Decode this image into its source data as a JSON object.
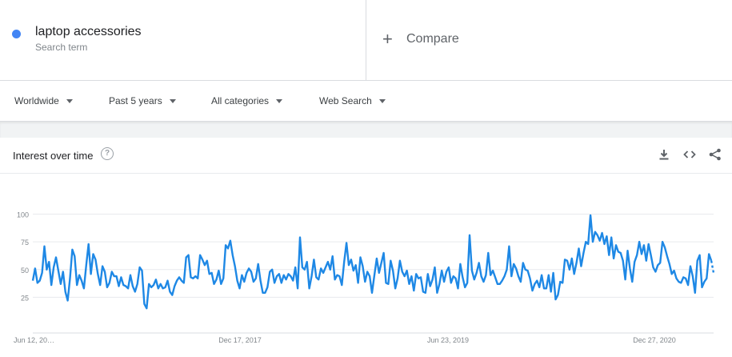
{
  "search_term": {
    "title": "laptop accessories",
    "subtitle": "Search term",
    "color": "#4285f4"
  },
  "compare": {
    "icon": "plus-icon",
    "label": "Compare"
  },
  "filters": [
    {
      "label": "Worldwide"
    },
    {
      "label": "Past 5 years"
    },
    {
      "label": "All categories"
    },
    {
      "label": "Web Search"
    }
  ],
  "card": {
    "title": "Interest over time",
    "icons": [
      "help-icon",
      "download-icon",
      "embed-icon",
      "share-icon"
    ]
  },
  "chart_data": {
    "type": "line",
    "series": [
      {
        "name": "laptop accessories",
        "color": "#1e88e5"
      }
    ],
    "y_ticks": [
      25,
      50,
      75,
      100
    ],
    "ylim": [
      0,
      100
    ],
    "x_labels": [
      "Jun 12, 20…",
      "Dec 17, 2017",
      "Jun 23, 2019",
      "Dec 27, 2020"
    ],
    "values": [
      40,
      51,
      38,
      40,
      47,
      71,
      50,
      57,
      36,
      52,
      61,
      49,
      37,
      48,
      30,
      22,
      42,
      68,
      62,
      36,
      45,
      40,
      33,
      54,
      73,
      46,
      64,
      59,
      46,
      36,
      53,
      48,
      34,
      38,
      48,
      44,
      44,
      35,
      43,
      36,
      35,
      33,
      45,
      35,
      30,
      37,
      52,
      49,
      19,
      15,
      37,
      34,
      36,
      41,
      33,
      37,
      33,
      34,
      40,
      30,
      27,
      35,
      40,
      43,
      40,
      38,
      61,
      63,
      43,
      42,
      44,
      42,
      63,
      59,
      54,
      58,
      46,
      47,
      37,
      41,
      49,
      37,
      42,
      72,
      69,
      76,
      63,
      53,
      40,
      33,
      45,
      39,
      47,
      51,
      48,
      39,
      42,
      55,
      40,
      29,
      29,
      34,
      48,
      50,
      38,
      44,
      46,
      38,
      45,
      41,
      46,
      44,
      40,
      52,
      33,
      79,
      52,
      50,
      57,
      33,
      44,
      59,
      43,
      41,
      51,
      47,
      52,
      57,
      50,
      62,
      41,
      45,
      44,
      36,
      57,
      74,
      54,
      59,
      49,
      54,
      38,
      61,
      53,
      39,
      48,
      44,
      29,
      45,
      60,
      47,
      56,
      65,
      38,
      37,
      58,
      49,
      33,
      42,
      58,
      48,
      44,
      49,
      37,
      44,
      31,
      46,
      42,
      43,
      30,
      29,
      46,
      35,
      41,
      52,
      29,
      37,
      49,
      39,
      48,
      52,
      38,
      44,
      42,
      33,
      55,
      43,
      34,
      38,
      81,
      49,
      41,
      47,
      56,
      44,
      39,
      45,
      65,
      45,
      49,
      43,
      37,
      37,
      40,
      44,
      50,
      71,
      44,
      55,
      51,
      44,
      39,
      56,
      50,
      49,
      42,
      31,
      37,
      40,
      34,
      45,
      33,
      33,
      45,
      30,
      47,
      23,
      27,
      39,
      38,
      59,
      58,
      50,
      60,
      46,
      56,
      69,
      53,
      65,
      75,
      73,
      99,
      75,
      84,
      81,
      76,
      83,
      73,
      80,
      63,
      79,
      60,
      72,
      66,
      65,
      58,
      41,
      67,
      51,
      39,
      57,
      63,
      75,
      64,
      72,
      58,
      73,
      63,
      52,
      48,
      54,
      56,
      75,
      70,
      62,
      55,
      46,
      49,
      42,
      39,
      38,
      43,
      42,
      36,
      53,
      44,
      29,
      58,
      63,
      34,
      39,
      42,
      64,
      58,
      47
    ]
  }
}
